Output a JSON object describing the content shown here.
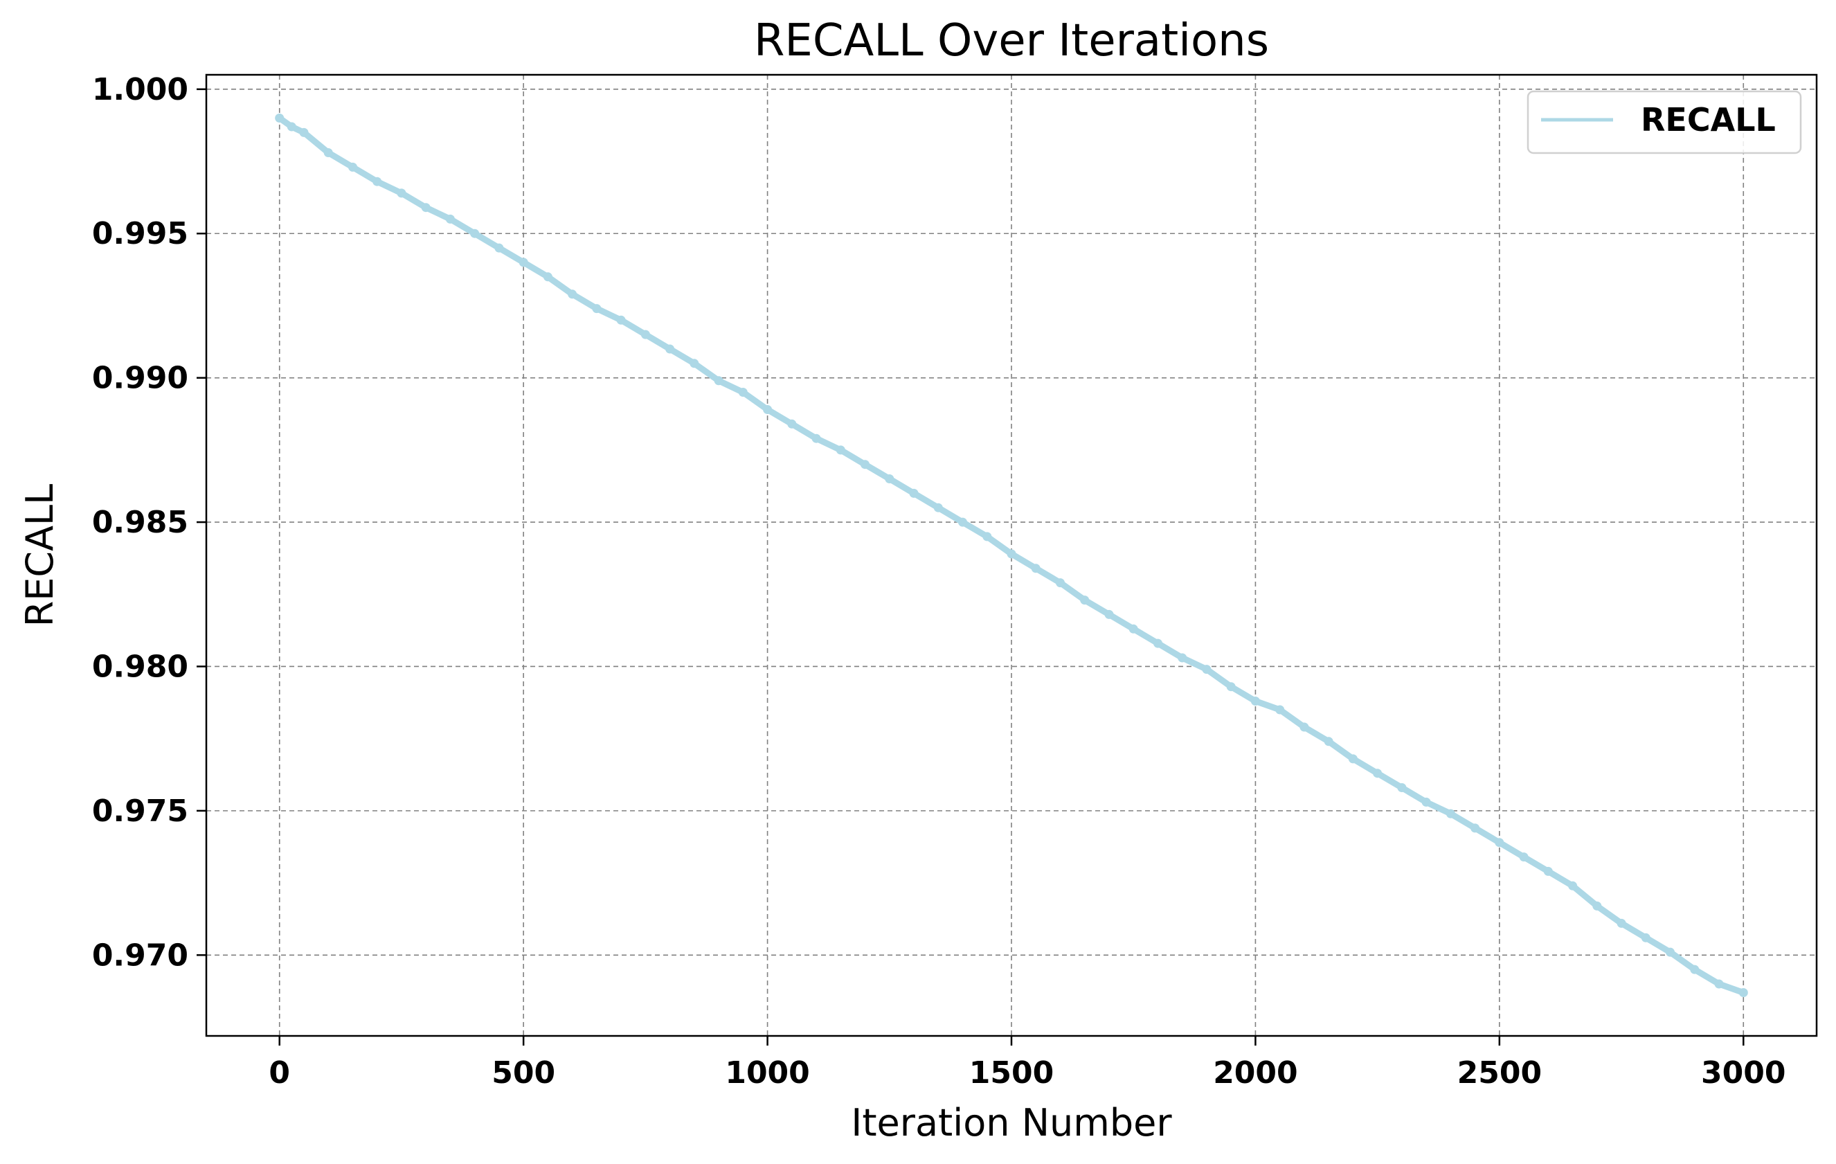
{
  "chart_data": {
    "type": "line",
    "title": "RECALL Over Iterations",
    "xlabel": "Iteration Number",
    "ylabel": "RECALL",
    "xlim": [
      -150,
      3150
    ],
    "ylim": [
      0.9672,
      1.0005
    ],
    "xticks": [
      0,
      500,
      1000,
      1500,
      2000,
      2500,
      3000
    ],
    "xtick_labels": [
      "0",
      "500",
      "1000",
      "1500",
      "2000",
      "2500",
      "3000"
    ],
    "yticks": [
      0.97,
      0.975,
      0.98,
      0.985,
      0.99,
      0.995,
      1.0
    ],
    "ytick_labels": [
      "0.970",
      "0.975",
      "0.980",
      "0.985",
      "0.990",
      "0.995",
      "1.000"
    ],
    "grid": true,
    "legend_position": "top-right",
    "series": [
      {
        "name": "RECALL",
        "color": "#add8e6",
        "x": [
          0,
          25,
          50,
          100,
          150,
          200,
          250,
          300,
          350,
          400,
          450,
          500,
          550,
          600,
          650,
          700,
          750,
          800,
          850,
          900,
          950,
          1000,
          1050,
          1100,
          1150,
          1200,
          1250,
          1300,
          1350,
          1400,
          1450,
          1500,
          1550,
          1600,
          1650,
          1700,
          1750,
          1800,
          1850,
          1900,
          1950,
          2000,
          2050,
          2100,
          2150,
          2200,
          2250,
          2300,
          2350,
          2400,
          2450,
          2500,
          2550,
          2600,
          2650,
          2700,
          2750,
          2800,
          2850,
          2900,
          2950,
          3000
        ],
        "y": [
          0.999,
          0.9987,
          0.9985,
          0.9978,
          0.9973,
          0.9968,
          0.9964,
          0.9959,
          0.9955,
          0.995,
          0.9945,
          0.994,
          0.9935,
          0.9929,
          0.9924,
          0.992,
          0.9915,
          0.991,
          0.9905,
          0.9899,
          0.9895,
          0.9889,
          0.9884,
          0.9879,
          0.9875,
          0.987,
          0.9865,
          0.986,
          0.9855,
          0.985,
          0.9845,
          0.9839,
          0.9834,
          0.9829,
          0.9823,
          0.9818,
          0.9813,
          0.9808,
          0.9803,
          0.9799,
          0.9793,
          0.9788,
          0.9785,
          0.9779,
          0.9774,
          0.9768,
          0.9763,
          0.9758,
          0.9753,
          0.9749,
          0.9744,
          0.9739,
          0.9734,
          0.9729,
          0.9724,
          0.9717,
          0.9711,
          0.9706,
          0.9701,
          0.9695,
          0.969,
          0.9687
        ]
      }
    ]
  }
}
